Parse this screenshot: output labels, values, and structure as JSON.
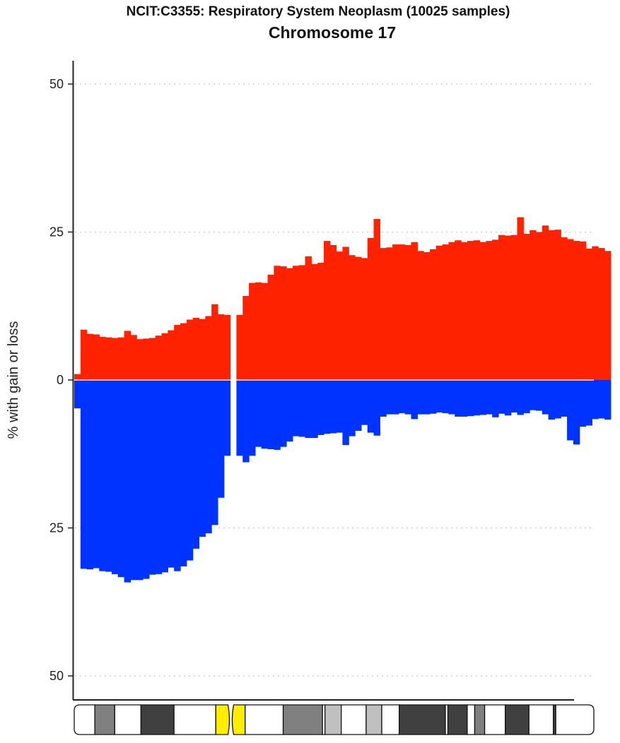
{
  "chart_data": {
    "type": "bar",
    "title": "NCIT:C3355: Respiratory System Neoplasm (10025 samples)",
    "subtitle": "Chromosome 17",
    "ylabel": "% with gain or loss",
    "y_ticks": [
      {
        "value": 50,
        "label": "50"
      },
      {
        "value": 25,
        "label": "25"
      },
      {
        "value": 0,
        "label": "0"
      },
      {
        "value": -25,
        "label": "25"
      },
      {
        "value": -50,
        "label": "50"
      }
    ],
    "ylim": [
      -54,
      54
    ],
    "xlim_mb": [
      0,
      83.3
    ],
    "centromere_gap_mb": [
      25.0,
      25.8
    ],
    "grid": "horizontal dotted",
    "colors": {
      "gain": "#ff2200",
      "loss": "#0033ff"
    },
    "series": [
      {
        "name": "gain",
        "start_mb": 0,
        "step_mb": 1,
        "values": [
          1,
          8.5,
          7.8,
          7.7,
          7.3,
          7.2,
          7.1,
          7.2,
          8.3,
          7.6,
          6.9,
          7.0,
          7.1,
          7.5,
          7.9,
          8.4,
          9.3,
          9.6,
          10.2,
          10.5,
          10.3,
          10.8,
          12.8,
          11.1,
          11.0,
          0,
          11.0,
          14.2,
          16.4,
          16.5,
          16.4,
          17.8,
          19.3,
          19.2,
          18.9,
          19.3,
          19.4,
          20.9,
          19.6,
          19.8,
          23.5,
          22.8,
          21.7,
          22.5,
          21.1,
          20.8,
          20.6,
          24.0,
          27.2,
          22.3,
          22.4,
          22.9,
          22.9,
          22.8,
          23.3,
          21.8,
          21.6,
          22.1,
          22.7,
          22.9,
          23.3,
          23.6,
          23.3,
          23.5,
          23.6,
          23.3,
          23.5,
          23.7,
          24.5,
          24.4,
          24.5,
          27.5,
          24.7,
          25.3,
          25.0,
          26.1,
          25.3,
          25.4,
          24.1,
          23.8,
          23.5,
          23.4,
          22.2,
          22.6,
          22.3,
          21.8
        ]
      },
      {
        "name": "loss",
        "start_mb": 0,
        "step_mb": 1,
        "values": [
          4.8,
          31.9,
          32.0,
          31.8,
          32.3,
          32.4,
          32.8,
          33.3,
          34.2,
          33.8,
          33.8,
          33.6,
          32.9,
          32.8,
          32.5,
          31.7,
          32.3,
          31.5,
          30.5,
          28.5,
          26.5,
          25.9,
          24.5,
          19.9,
          12.8,
          0,
          12.8,
          13.9,
          12.8,
          11.3,
          11.6,
          11.7,
          11.8,
          11.3,
          10.4,
          9.5,
          9.6,
          9.8,
          9.8,
          9.3,
          9.1,
          9.0,
          8.9,
          11.0,
          9.5,
          8.6,
          7.6,
          8.9,
          9.4,
          6.2,
          5.8,
          5.8,
          5.6,
          5.8,
          6.6,
          5.8,
          5.8,
          5.7,
          5.5,
          5.6,
          5.8,
          6.2,
          6.2,
          6.1,
          6.0,
          5.9,
          5.8,
          6.3,
          5.7,
          6.0,
          5.5,
          5.9,
          5.6,
          5.1,
          5.2,
          5.8,
          6.7,
          6.5,
          6.2,
          10.2,
          10.9,
          7.9,
          7.7,
          6.6,
          6.5,
          6.7
        ]
      }
    ],
    "ideogram": {
      "length_mb": 83.3,
      "centromere_mb": 25.1,
      "bands": [
        {
          "start": 0,
          "end": 3.3,
          "stain": "gneg"
        },
        {
          "start": 3.3,
          "end": 6.5,
          "stain": "gpos50"
        },
        {
          "start": 6.5,
          "end": 10.7,
          "stain": "gneg"
        },
        {
          "start": 10.7,
          "end": 16.0,
          "stain": "gpos75"
        },
        {
          "start": 16.0,
          "end": 22.7,
          "stain": "gneg"
        },
        {
          "start": 22.7,
          "end": 25.1,
          "stain": "acen"
        },
        {
          "start": 25.1,
          "end": 27.4,
          "stain": "acen"
        },
        {
          "start": 27.4,
          "end": 33.5,
          "stain": "gneg"
        },
        {
          "start": 33.5,
          "end": 39.8,
          "stain": "gpos50"
        },
        {
          "start": 39.8,
          "end": 40.2,
          "stain": "gneg"
        },
        {
          "start": 40.2,
          "end": 42.8,
          "stain": "gpos25"
        },
        {
          "start": 42.8,
          "end": 46.8,
          "stain": "gneg"
        },
        {
          "start": 46.8,
          "end": 49.3,
          "stain": "gpos25"
        },
        {
          "start": 49.3,
          "end": 52.1,
          "stain": "gneg"
        },
        {
          "start": 52.1,
          "end": 59.5,
          "stain": "gpos75"
        },
        {
          "start": 59.5,
          "end": 59.9,
          "stain": "gneg"
        },
        {
          "start": 59.9,
          "end": 63.0,
          "stain": "gpos75"
        },
        {
          "start": 63.0,
          "end": 64.2,
          "stain": "gneg"
        },
        {
          "start": 64.2,
          "end": 65.8,
          "stain": "gpos50"
        },
        {
          "start": 65.8,
          "end": 69.1,
          "stain": "gneg"
        },
        {
          "start": 69.1,
          "end": 72.9,
          "stain": "gpos75"
        },
        {
          "start": 72.9,
          "end": 76.8,
          "stain": "gneg"
        },
        {
          "start": 76.8,
          "end": 77.2,
          "stain": "gpos75"
        },
        {
          "start": 77.2,
          "end": 83.3,
          "stain": "gneg"
        }
      ]
    }
  }
}
